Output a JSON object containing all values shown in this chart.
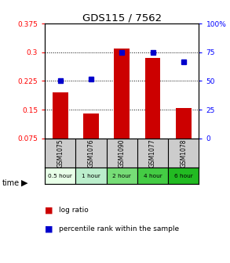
{
  "title": "GDS115 / 7562",
  "samples": [
    "GSM1075",
    "GSM1076",
    "GSM1090",
    "GSM1077",
    "GSM1078"
  ],
  "time_labels": [
    "0.5 hour",
    "1 hour",
    "2 hour",
    "4 hour",
    "6 hour"
  ],
  "log_ratios": [
    0.195,
    0.14,
    0.31,
    0.285,
    0.155
  ],
  "percentile_ranks": [
    50,
    52,
    75,
    75,
    67
  ],
  "bar_color": "#cc0000",
  "dot_color": "#0000cc",
  "left_yticks": [
    0.075,
    0.15,
    0.225,
    0.3,
    0.375
  ],
  "right_yticks": [
    0,
    25,
    50,
    75,
    100
  ],
  "ylim_left": [
    0.075,
    0.375
  ],
  "ylim_right": [
    0,
    100
  ],
  "label_log": "log ratio",
  "label_pct": "percentile rank within the sample",
  "header_bg": "#cccccc",
  "time_colors": [
    "#e8ffe8",
    "#bbeecc",
    "#77dd77",
    "#44cc44",
    "#22bb22"
  ],
  "grid_lines": [
    0.15,
    0.225,
    0.3
  ]
}
